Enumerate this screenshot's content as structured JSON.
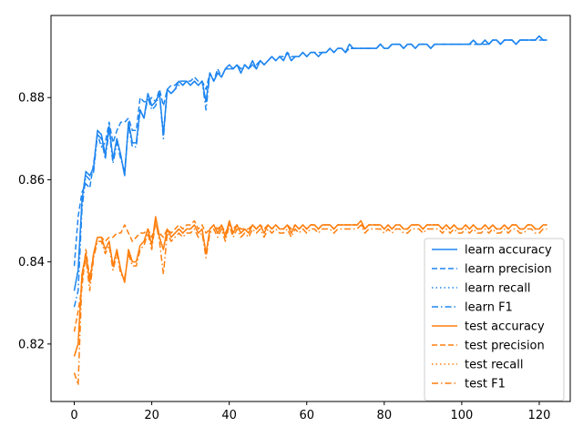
{
  "chart_data": {
    "type": "line",
    "title": "",
    "xlabel": "",
    "ylabel": "",
    "xlim": [
      -6,
      128
    ],
    "ylim": [
      0.806,
      0.9
    ],
    "xticks": [
      0,
      20,
      40,
      60,
      80,
      100,
      120
    ],
    "yticks": [
      0.82,
      0.84,
      0.86,
      0.88
    ],
    "ytick_labels": [
      "0.82",
      "0.84",
      "0.86",
      "0.88"
    ],
    "grid": false,
    "legend_position": "lower-right",
    "colors": {
      "learn": "#1f86f0",
      "test": "#ff7f0e"
    },
    "x": [
      0,
      1,
      2,
      3,
      4,
      5,
      6,
      7,
      8,
      9,
      10,
      11,
      12,
      13,
      14,
      15,
      16,
      17,
      18,
      19,
      20,
      21,
      22,
      23,
      24,
      25,
      26,
      27,
      28,
      29,
      30,
      31,
      32,
      33,
      34,
      35,
      36,
      37,
      38,
      39,
      40,
      41,
      42,
      43,
      44,
      45,
      46,
      47,
      48,
      49,
      50,
      51,
      52,
      53,
      54,
      55,
      56,
      57,
      58,
      59,
      60,
      61,
      62,
      63,
      64,
      65,
      66,
      67,
      68,
      69,
      70,
      71,
      72,
      73,
      74,
      75,
      76,
      77,
      78,
      79,
      80,
      81,
      82,
      83,
      84,
      85,
      86,
      87,
      88,
      89,
      90,
      91,
      92,
      93,
      94,
      95,
      96,
      97,
      98,
      99,
      100,
      101,
      102,
      103,
      104,
      105,
      106,
      107,
      108,
      109,
      110,
      111,
      112,
      113,
      114,
      115,
      116,
      117,
      118,
      119,
      120,
      121,
      122
    ],
    "series": [
      {
        "name": "learn accuracy",
        "group": "learn",
        "dash": "solid",
        "values": [
          0.833,
          0.838,
          0.855,
          0.862,
          0.861,
          0.863,
          0.872,
          0.871,
          0.866,
          0.873,
          0.865,
          0.87,
          0.866,
          0.861,
          0.874,
          0.869,
          0.869,
          0.877,
          0.875,
          0.881,
          0.878,
          0.879,
          0.881,
          0.871,
          0.882,
          0.881,
          0.882,
          0.884,
          0.883,
          0.884,
          0.883,
          0.884,
          0.883,
          0.884,
          0.879,
          0.886,
          0.884,
          0.886,
          0.885,
          0.887,
          0.888,
          0.887,
          0.888,
          0.886,
          0.888,
          0.887,
          0.889,
          0.887,
          0.889,
          0.888,
          0.889,
          0.89,
          0.889,
          0.89,
          0.889,
          0.891,
          0.889,
          0.89,
          0.89,
          0.891,
          0.89,
          0.891,
          0.891,
          0.89,
          0.891,
          0.891,
          0.892,
          0.891,
          0.892,
          0.892,
          0.891,
          0.893,
          0.892,
          0.892,
          0.892,
          0.892,
          0.892,
          0.892,
          0.892,
          0.893,
          0.892,
          0.892,
          0.893,
          0.893,
          0.893,
          0.892,
          0.893,
          0.893,
          0.892,
          0.893,
          0.893,
          0.893,
          0.892,
          0.893,
          0.893,
          0.893,
          0.893,
          0.893,
          0.893,
          0.893,
          0.893,
          0.893,
          0.893,
          0.894,
          0.893,
          0.893,
          0.894,
          0.893,
          0.894,
          0.894,
          0.893,
          0.894,
          0.894,
          0.894,
          0.893,
          0.894,
          0.894,
          0.894,
          0.894,
          0.894,
          0.895,
          0.894,
          0.894
        ]
      },
      {
        "name": "learn precision",
        "group": "learn",
        "dash": "dashed",
        "values": [
          0.839,
          0.851,
          0.857,
          0.859,
          0.858,
          0.864,
          0.871,
          0.868,
          0.869,
          0.874,
          0.869,
          0.872,
          0.874,
          0.874,
          0.875,
          0.872,
          0.872,
          0.88,
          0.879,
          0.879,
          0.88,
          0.879,
          0.882,
          0.878,
          0.882,
          0.883,
          0.883,
          0.884,
          0.884,
          0.884,
          0.884,
          0.885,
          0.884,
          0.884,
          0.882,
          0.886,
          0.884,
          0.887,
          0.885,
          0.887,
          0.887,
          0.887,
          0.888,
          0.887,
          0.888,
          0.887,
          0.888,
          0.888,
          0.889,
          0.888,
          0.889,
          0.89,
          0.889,
          0.89,
          0.89,
          0.891,
          0.89,
          0.89,
          0.89,
          0.891,
          0.89,
          0.891,
          0.891,
          0.891,
          0.891,
          0.891,
          0.892,
          0.891,
          0.892,
          0.892,
          0.891,
          0.892,
          0.892,
          0.892,
          0.892,
          0.892,
          0.892,
          0.892,
          0.892,
          0.893,
          0.892,
          0.892,
          0.893,
          0.893,
          0.893,
          0.892,
          0.893,
          0.893,
          0.892,
          0.893,
          0.893,
          0.893,
          0.892,
          0.893,
          0.893,
          0.893,
          0.893,
          0.893,
          0.893,
          0.893,
          0.893,
          0.893,
          0.893,
          0.893,
          0.893,
          0.893,
          0.893,
          0.893,
          0.894,
          0.894,
          0.893,
          0.894,
          0.894,
          0.894,
          0.893,
          0.894,
          0.894,
          0.894,
          0.894,
          0.894,
          0.894,
          0.894,
          0.894
        ]
      },
      {
        "name": "learn recall",
        "group": "learn",
        "dash": "dotted",
        "values": [
          0.833,
          0.838,
          0.855,
          0.862,
          0.861,
          0.863,
          0.872,
          0.871,
          0.866,
          0.873,
          0.865,
          0.87,
          0.866,
          0.861,
          0.874,
          0.869,
          0.869,
          0.877,
          0.875,
          0.881,
          0.878,
          0.879,
          0.881,
          0.871,
          0.882,
          0.881,
          0.882,
          0.884,
          0.883,
          0.884,
          0.883,
          0.884,
          0.883,
          0.884,
          0.879,
          0.886,
          0.884,
          0.886,
          0.885,
          0.887,
          0.888,
          0.887,
          0.888,
          0.886,
          0.888,
          0.887,
          0.889,
          0.887,
          0.889,
          0.888,
          0.889,
          0.89,
          0.889,
          0.89,
          0.889,
          0.891,
          0.889,
          0.89,
          0.89,
          0.891,
          0.89,
          0.891,
          0.891,
          0.89,
          0.891,
          0.891,
          0.892,
          0.891,
          0.892,
          0.892,
          0.891,
          0.893,
          0.892,
          0.892,
          0.892,
          0.892,
          0.892,
          0.892,
          0.892,
          0.893,
          0.892,
          0.892,
          0.893,
          0.893,
          0.893,
          0.892,
          0.893,
          0.893,
          0.892,
          0.893,
          0.893,
          0.893,
          0.892,
          0.893,
          0.893,
          0.893,
          0.893,
          0.893,
          0.893,
          0.893,
          0.893,
          0.893,
          0.893,
          0.894,
          0.893,
          0.893,
          0.894,
          0.893,
          0.894,
          0.894,
          0.893,
          0.894,
          0.894,
          0.894,
          0.893,
          0.894,
          0.894,
          0.894,
          0.894,
          0.894,
          0.895,
          0.894,
          0.894
        ]
      },
      {
        "name": "learn F1",
        "group": "learn",
        "dash": "dashdot",
        "values": [
          0.829,
          0.833,
          0.853,
          0.861,
          0.86,
          0.862,
          0.871,
          0.87,
          0.865,
          0.872,
          0.864,
          0.869,
          0.865,
          0.862,
          0.873,
          0.868,
          0.868,
          0.877,
          0.875,
          0.88,
          0.877,
          0.878,
          0.881,
          0.87,
          0.882,
          0.881,
          0.882,
          0.883,
          0.883,
          0.884,
          0.883,
          0.884,
          0.883,
          0.884,
          0.877,
          0.886,
          0.884,
          0.886,
          0.885,
          0.887,
          0.887,
          0.887,
          0.888,
          0.886,
          0.888,
          0.887,
          0.888,
          0.887,
          0.889,
          0.888,
          0.889,
          0.89,
          0.889,
          0.89,
          0.889,
          0.891,
          0.889,
          0.89,
          0.89,
          0.891,
          0.89,
          0.891,
          0.891,
          0.89,
          0.891,
          0.891,
          0.892,
          0.891,
          0.892,
          0.892,
          0.891,
          0.892,
          0.892,
          0.892,
          0.892,
          0.892,
          0.892,
          0.892,
          0.892,
          0.893,
          0.892,
          0.892,
          0.893,
          0.893,
          0.893,
          0.892,
          0.893,
          0.893,
          0.892,
          0.893,
          0.893,
          0.893,
          0.892,
          0.893,
          0.893,
          0.893,
          0.893,
          0.893,
          0.893,
          0.893,
          0.893,
          0.893,
          0.893,
          0.894,
          0.893,
          0.893,
          0.894,
          0.893,
          0.894,
          0.894,
          0.893,
          0.894,
          0.894,
          0.894,
          0.893,
          0.894,
          0.894,
          0.894,
          0.894,
          0.894,
          0.895,
          0.894,
          0.894
        ]
      },
      {
        "name": "test accuracy",
        "group": "test",
        "dash": "solid",
        "values": [
          0.817,
          0.82,
          0.837,
          0.842,
          0.835,
          0.842,
          0.846,
          0.846,
          0.843,
          0.845,
          0.839,
          0.843,
          0.838,
          0.835,
          0.843,
          0.84,
          0.84,
          0.844,
          0.845,
          0.848,
          0.844,
          0.851,
          0.846,
          0.843,
          0.848,
          0.846,
          0.847,
          0.848,
          0.847,
          0.848,
          0.848,
          0.849,
          0.847,
          0.848,
          0.842,
          0.848,
          0.849,
          0.847,
          0.849,
          0.846,
          0.85,
          0.847,
          0.849,
          0.847,
          0.848,
          0.847,
          0.849,
          0.848,
          0.849,
          0.847,
          0.849,
          0.848,
          0.849,
          0.848,
          0.848,
          0.849,
          0.847,
          0.849,
          0.848,
          0.849,
          0.848,
          0.849,
          0.849,
          0.848,
          0.849,
          0.849,
          0.849,
          0.848,
          0.849,
          0.849,
          0.849,
          0.849,
          0.849,
          0.849,
          0.85,
          0.848,
          0.849,
          0.849,
          0.849,
          0.849,
          0.848,
          0.849,
          0.848,
          0.849,
          0.849,
          0.848,
          0.848,
          0.849,
          0.849,
          0.849,
          0.848,
          0.849,
          0.849,
          0.849,
          0.849,
          0.848,
          0.849,
          0.848,
          0.849,
          0.848,
          0.848,
          0.849,
          0.848,
          0.849,
          0.848,
          0.848,
          0.849,
          0.848,
          0.849,
          0.848,
          0.848,
          0.849,
          0.848,
          0.849,
          0.849,
          0.848,
          0.848,
          0.849,
          0.849,
          0.848,
          0.848,
          0.849,
          0.849
        ]
      },
      {
        "name": "test precision",
        "group": "test",
        "dash": "dashed",
        "values": [
          0.823,
          0.828,
          0.834,
          0.843,
          0.836,
          0.842,
          0.846,
          0.846,
          0.845,
          0.846,
          0.846,
          0.847,
          0.847,
          0.849,
          0.847,
          0.845,
          0.846,
          0.847,
          0.847,
          0.848,
          0.846,
          0.849,
          0.847,
          0.846,
          0.848,
          0.847,
          0.848,
          0.849,
          0.848,
          0.849,
          0.849,
          0.85,
          0.848,
          0.849,
          0.847,
          0.848,
          0.849,
          0.848,
          0.849,
          0.847,
          0.849,
          0.848,
          0.849,
          0.848,
          0.848,
          0.848,
          0.849,
          0.848,
          0.849,
          0.848,
          0.849,
          0.848,
          0.849,
          0.848,
          0.848,
          0.849,
          0.848,
          0.849,
          0.848,
          0.849,
          0.848,
          0.849,
          0.849,
          0.848,
          0.849,
          0.849,
          0.849,
          0.848,
          0.849,
          0.849,
          0.849,
          0.849,
          0.849,
          0.849,
          0.849,
          0.848,
          0.849,
          0.849,
          0.849,
          0.849,
          0.848,
          0.849,
          0.848,
          0.849,
          0.849,
          0.848,
          0.848,
          0.849,
          0.849,
          0.849,
          0.848,
          0.849,
          0.849,
          0.849,
          0.849,
          0.848,
          0.849,
          0.848,
          0.849,
          0.848,
          0.848,
          0.849,
          0.848,
          0.849,
          0.848,
          0.848,
          0.849,
          0.848,
          0.849,
          0.848,
          0.848,
          0.849,
          0.848,
          0.849,
          0.849,
          0.848,
          0.848,
          0.849,
          0.849,
          0.848,
          0.848,
          0.849,
          0.849
        ]
      },
      {
        "name": "test recall",
        "group": "test",
        "dash": "dotted",
        "values": [
          0.817,
          0.82,
          0.837,
          0.842,
          0.835,
          0.842,
          0.846,
          0.846,
          0.843,
          0.845,
          0.839,
          0.843,
          0.838,
          0.835,
          0.843,
          0.84,
          0.84,
          0.844,
          0.845,
          0.848,
          0.844,
          0.851,
          0.846,
          0.843,
          0.848,
          0.846,
          0.847,
          0.848,
          0.847,
          0.848,
          0.848,
          0.849,
          0.847,
          0.848,
          0.842,
          0.848,
          0.849,
          0.847,
          0.849,
          0.846,
          0.85,
          0.847,
          0.849,
          0.847,
          0.848,
          0.847,
          0.849,
          0.848,
          0.849,
          0.847,
          0.849,
          0.848,
          0.849,
          0.848,
          0.848,
          0.849,
          0.847,
          0.849,
          0.848,
          0.849,
          0.848,
          0.849,
          0.849,
          0.848,
          0.849,
          0.849,
          0.849,
          0.848,
          0.849,
          0.849,
          0.849,
          0.849,
          0.849,
          0.849,
          0.85,
          0.848,
          0.849,
          0.849,
          0.849,
          0.849,
          0.848,
          0.849,
          0.848,
          0.849,
          0.849,
          0.848,
          0.848,
          0.849,
          0.849,
          0.849,
          0.848,
          0.849,
          0.849,
          0.849,
          0.849,
          0.848,
          0.849,
          0.848,
          0.849,
          0.848,
          0.848,
          0.849,
          0.848,
          0.849,
          0.848,
          0.848,
          0.849,
          0.848,
          0.849,
          0.848,
          0.848,
          0.849,
          0.848,
          0.849,
          0.849,
          0.848,
          0.848,
          0.849,
          0.849,
          0.848,
          0.848,
          0.849,
          0.849
        ]
      },
      {
        "name": "test F1",
        "group": "test",
        "dash": "dashdot",
        "values": [
          0.813,
          0.81,
          0.836,
          0.841,
          0.833,
          0.841,
          0.845,
          0.845,
          0.842,
          0.844,
          0.838,
          0.842,
          0.837,
          0.836,
          0.842,
          0.839,
          0.839,
          0.843,
          0.844,
          0.847,
          0.843,
          0.85,
          0.845,
          0.837,
          0.847,
          0.845,
          0.846,
          0.847,
          0.846,
          0.847,
          0.847,
          0.848,
          0.846,
          0.847,
          0.841,
          0.847,
          0.848,
          0.846,
          0.848,
          0.845,
          0.849,
          0.846,
          0.848,
          0.846,
          0.847,
          0.846,
          0.848,
          0.847,
          0.848,
          0.846,
          0.848,
          0.847,
          0.848,
          0.847,
          0.847,
          0.848,
          0.846,
          0.848,
          0.847,
          0.848,
          0.847,
          0.848,
          0.848,
          0.847,
          0.848,
          0.848,
          0.848,
          0.847,
          0.848,
          0.848,
          0.848,
          0.848,
          0.848,
          0.848,
          0.849,
          0.847,
          0.848,
          0.848,
          0.848,
          0.848,
          0.847,
          0.848,
          0.847,
          0.848,
          0.848,
          0.847,
          0.847,
          0.848,
          0.848,
          0.848,
          0.847,
          0.848,
          0.848,
          0.848,
          0.848,
          0.847,
          0.848,
          0.847,
          0.848,
          0.847,
          0.847,
          0.848,
          0.847,
          0.848,
          0.847,
          0.847,
          0.848,
          0.847,
          0.848,
          0.847,
          0.847,
          0.848,
          0.847,
          0.848,
          0.848,
          0.847,
          0.847,
          0.848,
          0.848,
          0.847,
          0.847,
          0.848,
          0.848
        ]
      }
    ]
  }
}
